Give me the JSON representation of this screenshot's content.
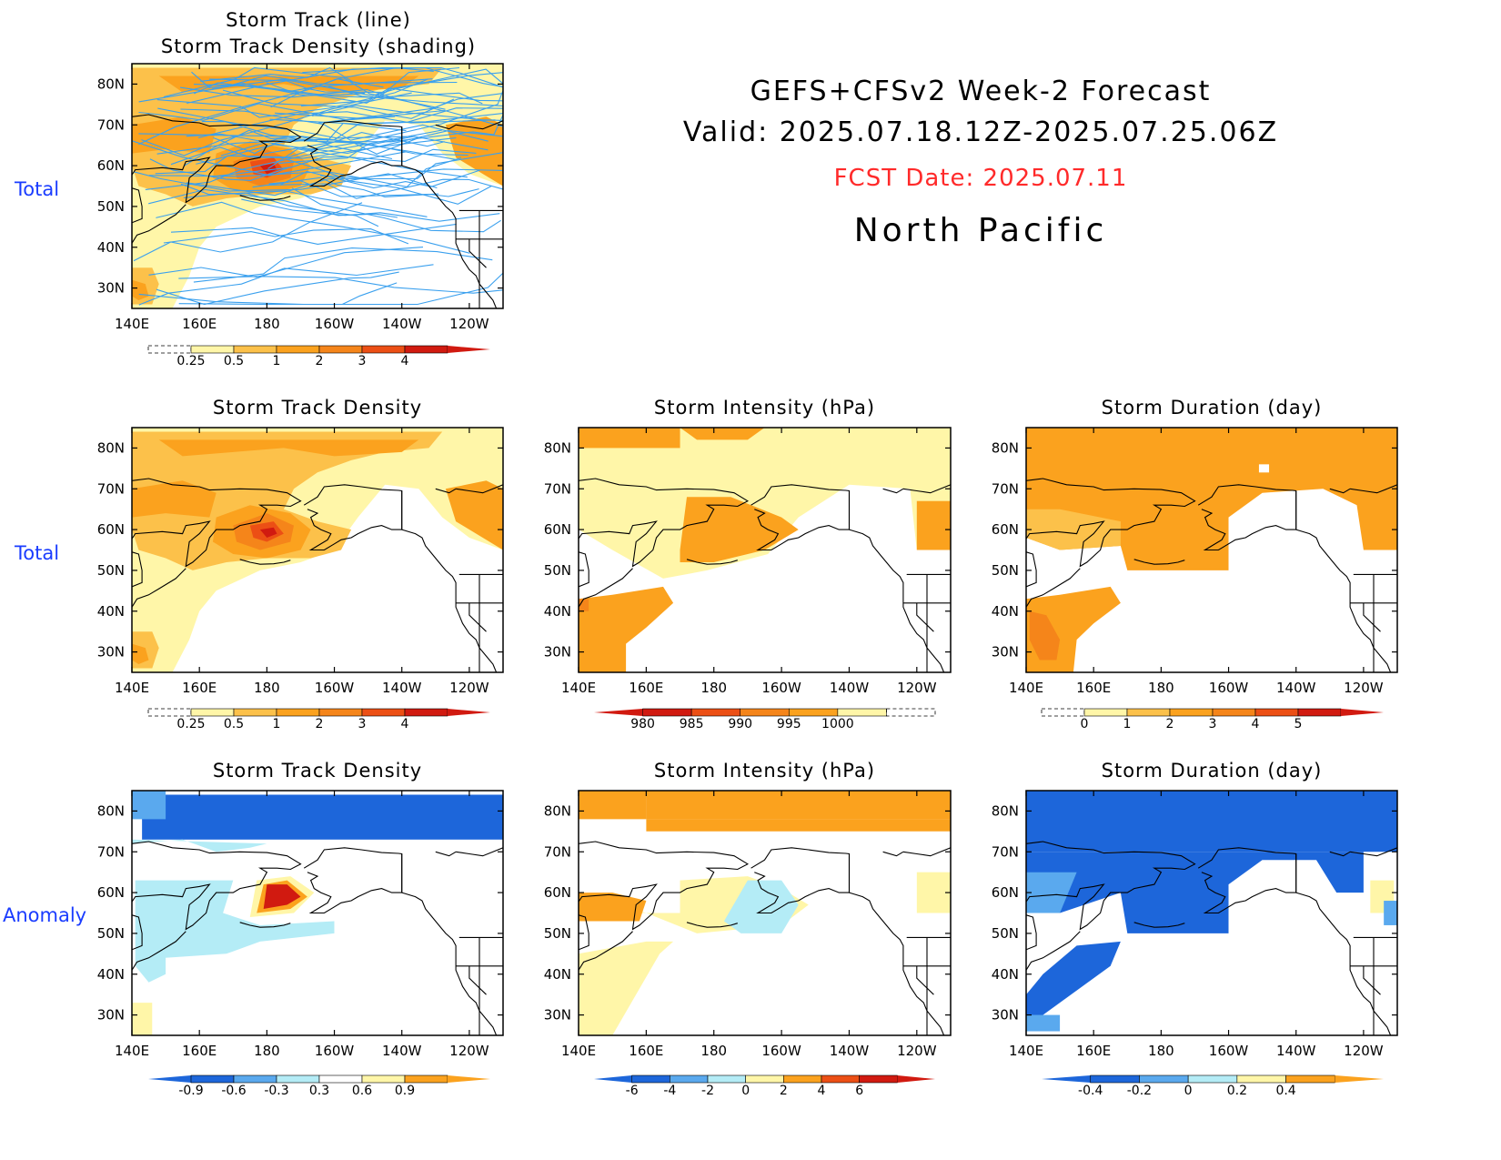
{
  "header": {
    "line1": "GEFS+CFSv2 Week-2 Forecast",
    "line2": "Valid: 2025.07.18.12Z-2025.07.25.06Z",
    "fcst_date": "FCST Date: 2025.07.11",
    "region": "North Pacific"
  },
  "colors": {
    "row_label": "#1a3cff",
    "fcst_date": "#ff2a2a",
    "yellow": "#fff6a8",
    "lightorange": "#fcc14a",
    "orange": "#fba21e",
    "darkorange": "#f5851a",
    "orangered": "#ec4f15",
    "red": "#d11a10",
    "lightblue": "#b4ecf6",
    "medblue": "#5aa9ee",
    "blue": "#1d66da",
    "track_line": "#3aa0ee"
  },
  "row_labels": [
    "Total",
    "Total",
    "Anomaly"
  ],
  "axes": {
    "x_ticks": [
      "140E",
      "160E",
      "180",
      "160W",
      "140W",
      "120W"
    ],
    "y_ticks": [
      "80N",
      "70N",
      "60N",
      "50N",
      "40N",
      "30N"
    ]
  },
  "panels": {
    "p0": {
      "title1": "Storm Track (line)",
      "title2": "Storm Track Density (shading)"
    },
    "p1": {
      "title": "Storm Track Density"
    },
    "p2": {
      "title": "Storm Intensity (hPa)"
    },
    "p3": {
      "title": "Storm Duration (day)"
    },
    "p4": {
      "title": "Storm Track Density"
    },
    "p5": {
      "title": "Storm Intensity (hPa)"
    },
    "p6": {
      "title": "Storm Duration (day)"
    }
  },
  "colorbars": {
    "density_total": [
      "0.25",
      "0.5",
      "1",
      "2",
      "3",
      "4"
    ],
    "intensity_total": [
      "980",
      "985",
      "990",
      "995",
      "1000"
    ],
    "duration_total": [
      "0",
      "1",
      "2",
      "3",
      "4",
      "5"
    ],
    "density_anom": [
      "-0.9",
      "-0.6",
      "-0.3",
      "0.3",
      "0.6",
      "0.9"
    ],
    "intensity_anom": [
      "-6",
      "-4",
      "-2",
      "0",
      "2",
      "4",
      "6"
    ],
    "duration_anom": [
      "-0.4",
      "-0.2",
      "0",
      "0.2",
      "0.4"
    ]
  }
}
